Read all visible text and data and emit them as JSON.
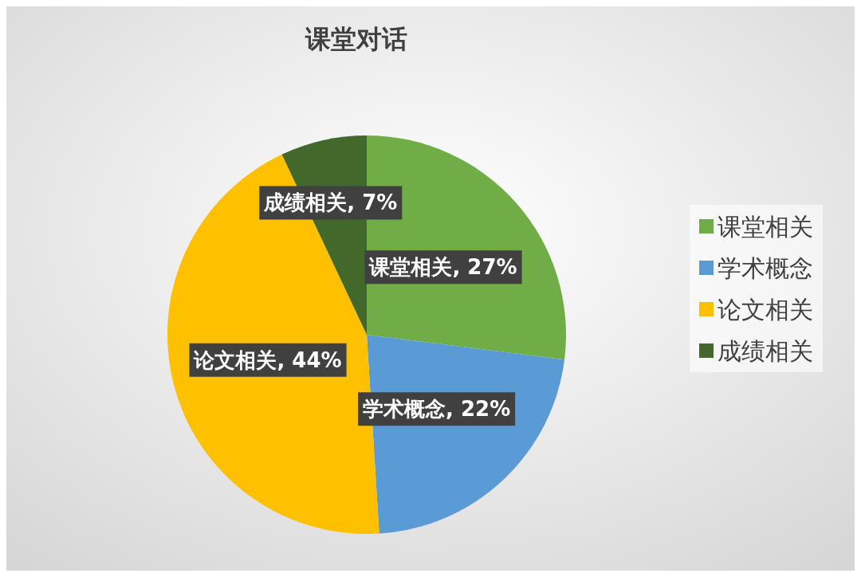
{
  "chart_data": {
    "type": "pie",
    "title": "课堂对话",
    "categories": [
      "课堂相关",
      "学术概念",
      "论文相关",
      "成绩相关"
    ],
    "values": [
      27,
      22,
      44,
      7
    ],
    "colors": [
      "#70ad47",
      "#5b9bd5",
      "#ffc000",
      "#43682b"
    ],
    "value_labels": [
      "课堂相关, 27%",
      "学术概念, 22%",
      "论文相关, 44%",
      "成绩相关, 7%"
    ],
    "legend": "right"
  }
}
